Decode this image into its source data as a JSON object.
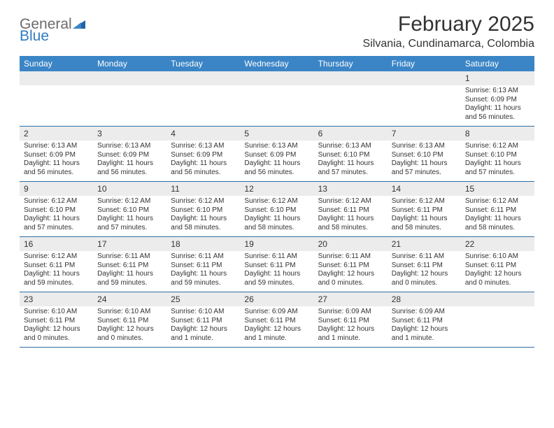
{
  "logo": {
    "general": "General",
    "blue": "Blue"
  },
  "title": "February 2025",
  "location": "Silvania, Cundinamarca, Colombia",
  "dow": [
    "Sunday",
    "Monday",
    "Tuesday",
    "Wednesday",
    "Thursday",
    "Friday",
    "Saturday"
  ],
  "colors": {
    "header_bg": "#3b85c6",
    "header_text": "#ffffff",
    "daynum_bg": "#ececec",
    "week_border": "#2f6ea5",
    "text": "#333333",
    "logo_gray": "#6b6b6b",
    "logo_blue": "#2f7bbf"
  },
  "weeks": [
    [
      {
        "n": "",
        "l": []
      },
      {
        "n": "",
        "l": []
      },
      {
        "n": "",
        "l": []
      },
      {
        "n": "",
        "l": []
      },
      {
        "n": "",
        "l": []
      },
      {
        "n": "",
        "l": []
      },
      {
        "n": "1",
        "l": [
          "Sunrise: 6:13 AM",
          "Sunset: 6:09 PM",
          "Daylight: 11 hours",
          "and 56 minutes."
        ]
      }
    ],
    [
      {
        "n": "2",
        "l": [
          "Sunrise: 6:13 AM",
          "Sunset: 6:09 PM",
          "Daylight: 11 hours",
          "and 56 minutes."
        ]
      },
      {
        "n": "3",
        "l": [
          "Sunrise: 6:13 AM",
          "Sunset: 6:09 PM",
          "Daylight: 11 hours",
          "and 56 minutes."
        ]
      },
      {
        "n": "4",
        "l": [
          "Sunrise: 6:13 AM",
          "Sunset: 6:09 PM",
          "Daylight: 11 hours",
          "and 56 minutes."
        ]
      },
      {
        "n": "5",
        "l": [
          "Sunrise: 6:13 AM",
          "Sunset: 6:09 PM",
          "Daylight: 11 hours",
          "and 56 minutes."
        ]
      },
      {
        "n": "6",
        "l": [
          "Sunrise: 6:13 AM",
          "Sunset: 6:10 PM",
          "Daylight: 11 hours",
          "and 57 minutes."
        ]
      },
      {
        "n": "7",
        "l": [
          "Sunrise: 6:13 AM",
          "Sunset: 6:10 PM",
          "Daylight: 11 hours",
          "and 57 minutes."
        ]
      },
      {
        "n": "8",
        "l": [
          "Sunrise: 6:12 AM",
          "Sunset: 6:10 PM",
          "Daylight: 11 hours",
          "and 57 minutes."
        ]
      }
    ],
    [
      {
        "n": "9",
        "l": [
          "Sunrise: 6:12 AM",
          "Sunset: 6:10 PM",
          "Daylight: 11 hours",
          "and 57 minutes."
        ]
      },
      {
        "n": "10",
        "l": [
          "Sunrise: 6:12 AM",
          "Sunset: 6:10 PM",
          "Daylight: 11 hours",
          "and 57 minutes."
        ]
      },
      {
        "n": "11",
        "l": [
          "Sunrise: 6:12 AM",
          "Sunset: 6:10 PM",
          "Daylight: 11 hours",
          "and 58 minutes."
        ]
      },
      {
        "n": "12",
        "l": [
          "Sunrise: 6:12 AM",
          "Sunset: 6:10 PM",
          "Daylight: 11 hours",
          "and 58 minutes."
        ]
      },
      {
        "n": "13",
        "l": [
          "Sunrise: 6:12 AM",
          "Sunset: 6:11 PM",
          "Daylight: 11 hours",
          "and 58 minutes."
        ]
      },
      {
        "n": "14",
        "l": [
          "Sunrise: 6:12 AM",
          "Sunset: 6:11 PM",
          "Daylight: 11 hours",
          "and 58 minutes."
        ]
      },
      {
        "n": "15",
        "l": [
          "Sunrise: 6:12 AM",
          "Sunset: 6:11 PM",
          "Daylight: 11 hours",
          "and 58 minutes."
        ]
      }
    ],
    [
      {
        "n": "16",
        "l": [
          "Sunrise: 6:12 AM",
          "Sunset: 6:11 PM",
          "Daylight: 11 hours",
          "and 59 minutes."
        ]
      },
      {
        "n": "17",
        "l": [
          "Sunrise: 6:11 AM",
          "Sunset: 6:11 PM",
          "Daylight: 11 hours",
          "and 59 minutes."
        ]
      },
      {
        "n": "18",
        "l": [
          "Sunrise: 6:11 AM",
          "Sunset: 6:11 PM",
          "Daylight: 11 hours",
          "and 59 minutes."
        ]
      },
      {
        "n": "19",
        "l": [
          "Sunrise: 6:11 AM",
          "Sunset: 6:11 PM",
          "Daylight: 11 hours",
          "and 59 minutes."
        ]
      },
      {
        "n": "20",
        "l": [
          "Sunrise: 6:11 AM",
          "Sunset: 6:11 PM",
          "Daylight: 12 hours",
          "and 0 minutes."
        ]
      },
      {
        "n": "21",
        "l": [
          "Sunrise: 6:11 AM",
          "Sunset: 6:11 PM",
          "Daylight: 12 hours",
          "and 0 minutes."
        ]
      },
      {
        "n": "22",
        "l": [
          "Sunrise: 6:10 AM",
          "Sunset: 6:11 PM",
          "Daylight: 12 hours",
          "and 0 minutes."
        ]
      }
    ],
    [
      {
        "n": "23",
        "l": [
          "Sunrise: 6:10 AM",
          "Sunset: 6:11 PM",
          "Daylight: 12 hours",
          "and 0 minutes."
        ]
      },
      {
        "n": "24",
        "l": [
          "Sunrise: 6:10 AM",
          "Sunset: 6:11 PM",
          "Daylight: 12 hours",
          "and 0 minutes."
        ]
      },
      {
        "n": "25",
        "l": [
          "Sunrise: 6:10 AM",
          "Sunset: 6:11 PM",
          "Daylight: 12 hours",
          "and 1 minute."
        ]
      },
      {
        "n": "26",
        "l": [
          "Sunrise: 6:09 AM",
          "Sunset: 6:11 PM",
          "Daylight: 12 hours",
          "and 1 minute."
        ]
      },
      {
        "n": "27",
        "l": [
          "Sunrise: 6:09 AM",
          "Sunset: 6:11 PM",
          "Daylight: 12 hours",
          "and 1 minute."
        ]
      },
      {
        "n": "28",
        "l": [
          "Sunrise: 6:09 AM",
          "Sunset: 6:11 PM",
          "Daylight: 12 hours",
          "and 1 minute."
        ]
      },
      {
        "n": "",
        "l": []
      }
    ]
  ]
}
